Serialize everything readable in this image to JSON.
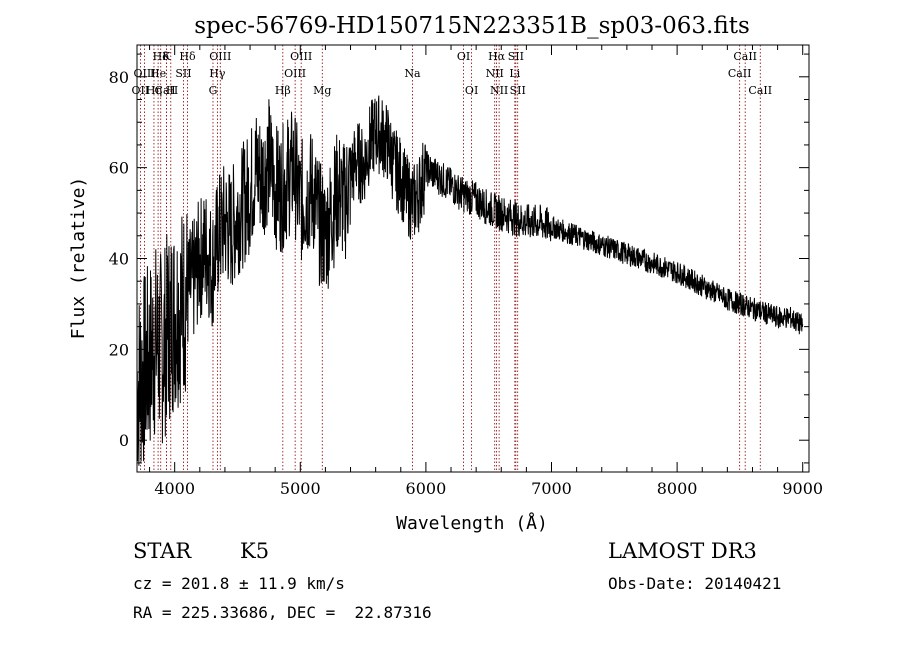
{
  "chart_data": {
    "type": "line",
    "title": "spec-56769-HD150715N223351B_sp03-063.fits",
    "xlabel": "Wavelength (Å)",
    "ylabel": "Flux (relative)",
    "xlim": [
      3700,
      9050
    ],
    "ylim": [
      -7,
      87
    ],
    "xticks": [
      4000,
      5000,
      6000,
      7000,
      8000,
      9000
    ],
    "yticks": [
      0,
      20,
      40,
      60,
      80
    ],
    "xtick_labels": [
      "4000",
      "5000",
      "6000",
      "7000",
      "8000",
      "9000"
    ],
    "ytick_labels": [
      "0",
      "20",
      "40",
      "60",
      "80"
    ],
    "series": [
      {
        "name": "spectrum",
        "x": [
          3700,
          3750,
          3800,
          3850,
          3900,
          3950,
          4000,
          4050,
          4100,
          4150,
          4200,
          4250,
          4300,
          4350,
          4400,
          4450,
          4500,
          4550,
          4600,
          4650,
          4700,
          4750,
          4800,
          4850,
          4900,
          4950,
          5000,
          5050,
          5100,
          5150,
          5200,
          5250,
          5300,
          5350,
          5400,
          5450,
          5500,
          5550,
          5600,
          5650,
          5700,
          5750,
          5800,
          5850,
          5900,
          5950,
          6000,
          6100,
          6200,
          6300,
          6400,
          6500,
          6600,
          6700,
          6800,
          6900,
          7000,
          7200,
          7400,
          7600,
          7800,
          8000,
          8200,
          8400,
          8500,
          8600,
          8700,
          8800,
          8900,
          8950,
          9000
        ],
        "y": [
          12,
          15,
          18,
          22,
          20,
          25,
          28,
          30,
          32,
          35,
          40,
          42,
          38,
          45,
          48,
          46,
          50,
          52,
          55,
          60,
          58,
          62,
          56,
          55,
          58,
          60,
          52,
          54,
          55,
          48,
          45,
          50,
          55,
          52,
          58,
          62,
          60,
          65,
          68,
          67,
          65,
          60,
          58,
          54,
          52,
          55,
          60,
          58,
          56,
          54,
          53,
          51,
          50,
          49,
          48,
          48,
          47,
          45,
          43,
          41,
          39,
          37,
          34,
          31,
          30,
          29,
          28,
          27,
          27,
          26,
          25
        ]
      }
    ],
    "lines": [
      {
        "name": "CaII",
        "x": 3934,
        "label_row": 3
      },
      {
        "name": "H",
        "x": 3969,
        "label_row": 3
      },
      {
        "name": "OII",
        "x": 3727,
        "label_row": 3
      },
      {
        "name": "Hη",
        "x": 3835,
        "label_row": 3
      },
      {
        "name": "Hδ",
        "x": 3889,
        "label_row": 1
      },
      {
        "name": "OIII",
        "x": 3760,
        "label_row": 2
      },
      {
        "name": "He",
        "x": 3868,
        "label_row": 2
      },
      {
        "name": "K",
        "x": 3934,
        "label_row": 1
      },
      {
        "name": "SII",
        "x": 4070,
        "label_row": 2
      },
      {
        "name": "Hδ",
        "x": 4102,
        "label_row": 1
      },
      {
        "name": "G",
        "x": 4305,
        "label_row": 3
      },
      {
        "name": "Hγ",
        "x": 4340,
        "label_row": 2
      },
      {
        "name": "OIII",
        "x": 4363,
        "label_row": 1
      },
      {
        "name": "Hβ",
        "x": 4861,
        "label_row": 3
      },
      {
        "name": "OIII",
        "x": 4959,
        "label_row": 2
      },
      {
        "name": "OIII",
        "x": 5007,
        "label_row": 1
      },
      {
        "name": "Mg",
        "x": 5175,
        "label_row": 3
      },
      {
        "name": "Na",
        "x": 5893,
        "label_row": 2
      },
      {
        "name": "OI",
        "x": 6300,
        "label_row": 1
      },
      {
        "name": "OI",
        "x": 6364,
        "label_row": 3
      },
      {
        "name": "NII",
        "x": 6548,
        "label_row": 2
      },
      {
        "name": "Hα",
        "x": 6563,
        "label_row": 1
      },
      {
        "name": "NII",
        "x": 6583,
        "label_row": 3
      },
      {
        "name": "Li",
        "x": 6708,
        "label_row": 2
      },
      {
        "name": "SII",
        "x": 6716,
        "label_row": 1
      },
      {
        "name": "SII",
        "x": 6731,
        "label_row": 3
      },
      {
        "name": "CaII",
        "x": 8498,
        "label_row": 2
      },
      {
        "name": "CaII",
        "x": 8542,
        "label_row": 1
      },
      {
        "name": "CaII",
        "x": 8662,
        "label_row": 3
      }
    ]
  },
  "info": {
    "class": "STAR",
    "subclass": "K5",
    "survey": "LAMOST DR3",
    "cz": "cz = 201.8 ± 11.9 km/s",
    "obs_date": "Obs-Date: 20140421",
    "coords": "RA = 225.33686, DEC =  22.87316"
  },
  "colors": {
    "spectrum": "#000000",
    "line_markers": "#8b0000"
  }
}
